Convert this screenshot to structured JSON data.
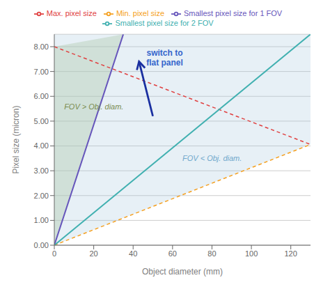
{
  "chart_data": {
    "type": "line",
    "xlabel": "Object diameter (mm)",
    "ylabel": "Pixel size (micron)",
    "xlim": [
      0,
      130
    ],
    "ylim": [
      0,
      8.5
    ],
    "xticks": [
      0,
      20,
      40,
      60,
      80,
      100,
      120
    ],
    "yticks": [
      {
        "value": 0.0,
        "label": "0.00"
      },
      {
        "value": 1.0,
        "label": "1.00"
      },
      {
        "value": 2.0,
        "label": "2.00"
      },
      {
        "value": 3.0,
        "label": "3.00"
      },
      {
        "value": 4.0,
        "label": "4.00"
      },
      {
        "value": 5.0,
        "label": "5.00"
      },
      {
        "value": 6.0,
        "label": "6.00"
      },
      {
        "value": 7.0,
        "label": "7.00"
      },
      {
        "value": 8.0,
        "label": "8.00"
      }
    ],
    "grid": true,
    "legend": "top",
    "series": [
      {
        "name": "Min. pixel size",
        "color": "#f5a020",
        "line_style": "dashed",
        "x": [
          0,
          130
        ],
        "values": [
          0,
          4.06
        ]
      },
      {
        "name": "Smallest pixel size for 1 FOV",
        "color": "#6655bb",
        "line_style": "solid",
        "x": [
          0,
          35.0
        ],
        "values": [
          0,
          8.5
        ]
      },
      {
        "name": "Max. pixel size",
        "color": "#e04040",
        "line_style": "dashed",
        "x": [
          0,
          130
        ],
        "values": [
          8.0,
          4.06
        ]
      },
      {
        "name": "Smallest pixel size for 2 FOV",
        "color": "#40b0b0",
        "line_style": "solid",
        "x": [
          0,
          130
        ],
        "values": [
          0,
          8.5
        ]
      }
    ],
    "regions": [
      {
        "color": "#b0c898",
        "x": [
          0,
          35.0
        ],
        "lower": [
          0,
          8.5
        ],
        "upper": [
          8.0,
          8.5
        ]
      },
      {
        "color": "#aac8e0",
        "x": [
          0,
          130
        ],
        "lower": [
          0,
          4.06
        ],
        "upper": [
          8.5,
          8.5
        ]
      }
    ],
    "arrow": {
      "color": "#1a2fa0",
      "x": [
        50,
        43
      ],
      "values": [
        5.2,
        7.4
      ]
    },
    "annotations": [
      {
        "text": "switch to\nflat panel",
        "x": 56,
        "y": 7.9,
        "color": "#3366cc"
      },
      {
        "text": "FOV > Obj. diam.",
        "x": 5,
        "y": 5.6,
        "color": "#7a8c50"
      },
      {
        "text": "FOV < Obj. diam.",
        "x": 65,
        "y": 3.5,
        "color": "#70a8cc"
      }
    ]
  }
}
